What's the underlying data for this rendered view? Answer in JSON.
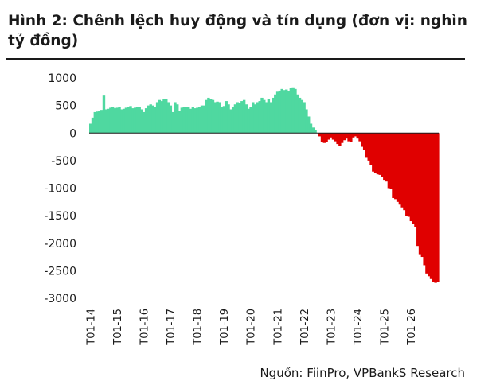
{
  "title": "Hình 2: Chênh lệch huy động và tín dụng (đơn vị: nghìn tỷ đồng)",
  "source": "Nguồn: FiinPro, VPBankS Research",
  "colors": {
    "positive": "#4fd8a0",
    "negative": "#e00000",
    "axis": "#1a1a1a"
  },
  "chart_data": {
    "type": "bar",
    "ylim": [
      -3000,
      1000
    ],
    "yticks": [
      1000,
      500,
      0,
      -500,
      -1000,
      -1500,
      -2000,
      -2500,
      -3000
    ],
    "xticks": [
      "T01-14",
      "T01-15",
      "T01-16",
      "T01-17",
      "T01-18",
      "T01-19",
      "T01-20",
      "T01-21",
      "T01-22",
      "T01-23",
      "T01-24",
      "T01-25",
      "T01-26"
    ],
    "start": "T01-14",
    "freq": "monthly",
    "values": [
      170,
      280,
      380,
      390,
      400,
      420,
      680,
      430,
      440,
      460,
      480,
      450,
      460,
      470,
      430,
      440,
      460,
      480,
      490,
      450,
      460,
      470,
      480,
      430,
      380,
      450,
      500,
      520,
      500,
      480,
      560,
      600,
      580,
      610,
      620,
      560,
      500,
      380,
      560,
      520,
      400,
      460,
      480,
      470,
      480,
      440,
      470,
      450,
      460,
      480,
      500,
      500,
      600,
      640,
      620,
      600,
      560,
      570,
      560,
      480,
      490,
      580,
      520,
      430,
      480,
      520,
      560,
      540,
      580,
      600,
      520,
      440,
      480,
      560,
      520,
      560,
      580,
      640,
      600,
      560,
      620,
      560,
      640,
      700,
      750,
      770,
      800,
      780,
      790,
      760,
      820,
      830,
      800,
      700,
      640,
      600,
      560,
      430,
      300,
      170,
      100,
      60,
      0,
      -60,
      -160,
      -180,
      -160,
      -120,
      -80,
      -120,
      -150,
      -200,
      -240,
      -180,
      -130,
      -100,
      -150,
      -160,
      -80,
      -60,
      -100,
      -150,
      -250,
      -300,
      -450,
      -500,
      -580,
      -700,
      -730,
      -750,
      -760,
      -800,
      -850,
      -880,
      -1000,
      -1020,
      -1180,
      -1200,
      -1250,
      -1300,
      -1350,
      -1400,
      -1500,
      -1520,
      -1600,
      -1650,
      -1700,
      -2050,
      -2200,
      -2250,
      -2400,
      -2550,
      -2600,
      -2650,
      -2700,
      -2720,
      -2700
    ]
  }
}
